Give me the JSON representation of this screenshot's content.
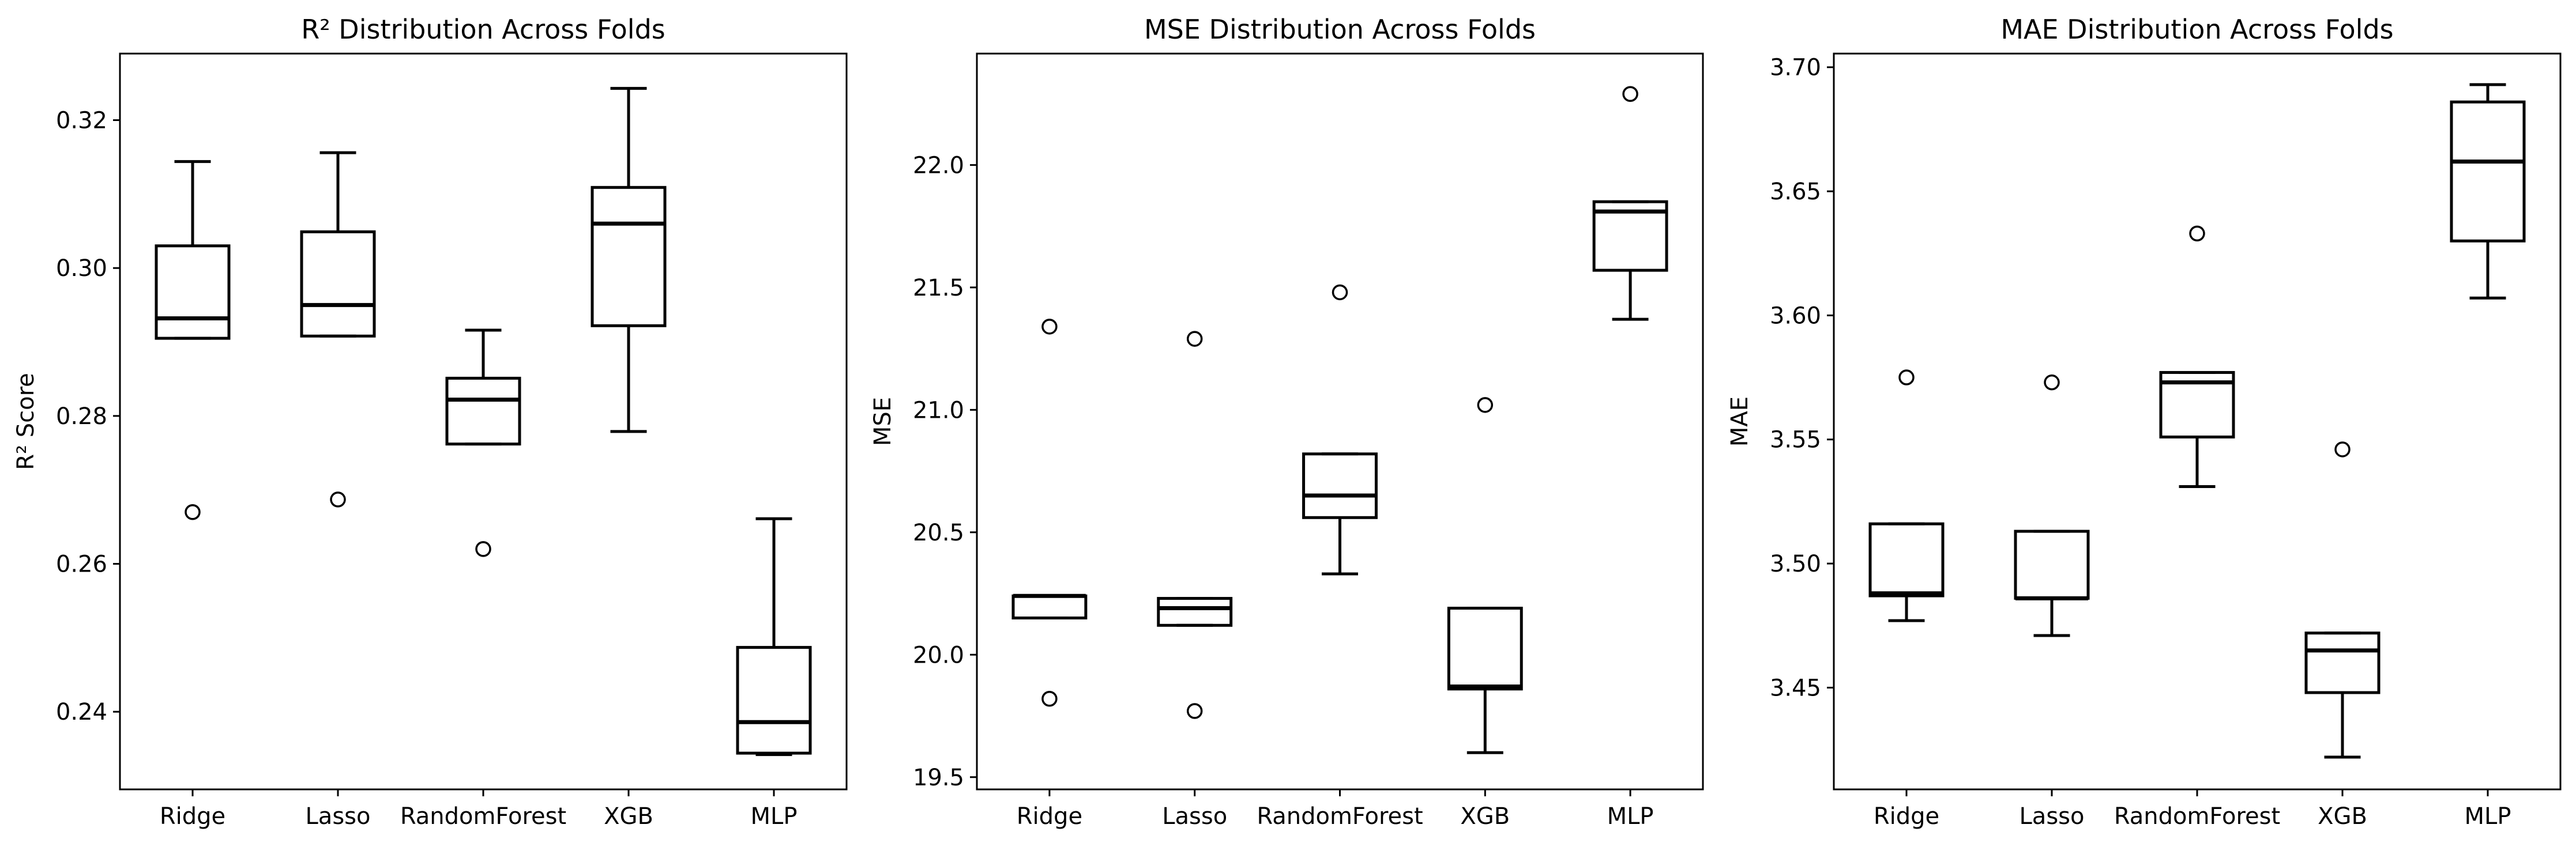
{
  "chart_data": [
    {
      "type": "box",
      "title": "R² Distribution Across Folds",
      "xlabel": "",
      "ylabel": "R² Score",
      "ylim": [
        0.2295,
        0.329
      ],
      "yticks": [
        0.24,
        0.26,
        0.28,
        0.3,
        0.32
      ],
      "ytick_labels": [
        "0.24",
        "0.26",
        "0.28",
        "0.30",
        "0.32"
      ],
      "categories": [
        "Ridge",
        "Lasso",
        "RandomForest",
        "XGB",
        "MLP"
      ],
      "boxes": [
        {
          "name": "Ridge",
          "whislo": 0.2905,
          "q1": 0.2905,
          "med": 0.2932,
          "q3": 0.303,
          "whishi": 0.3144,
          "fliers": [
            0.267
          ]
        },
        {
          "name": "Lasso",
          "whislo": 0.2908,
          "q1": 0.2908,
          "med": 0.295,
          "q3": 0.3049,
          "whishi": 0.3156,
          "fliers": [
            0.2687
          ]
        },
        {
          "name": "RandomForest",
          "whislo": 0.2762,
          "q1": 0.2762,
          "med": 0.2822,
          "q3": 0.2851,
          "whishi": 0.2916,
          "fliers": [
            0.262
          ]
        },
        {
          "name": "XGB",
          "whislo": 0.2779,
          "q1": 0.2922,
          "med": 0.306,
          "q3": 0.3109,
          "whishi": 0.3243,
          "fliers": []
        },
        {
          "name": "MLP",
          "whislo": 0.2342,
          "q1": 0.2344,
          "med": 0.2386,
          "q3": 0.2487,
          "whishi": 0.2661,
          "fliers": []
        }
      ]
    },
    {
      "type": "box",
      "title": "MSE Distribution Across Folds",
      "xlabel": "",
      "ylabel": "MSE",
      "ylim": [
        19.45,
        22.455
      ],
      "yticks": [
        19.5,
        20.0,
        20.5,
        21.0,
        21.5,
        22.0
      ],
      "ytick_labels": [
        "19.5",
        "20.0",
        "20.5",
        "21.0",
        "21.5",
        "22.0"
      ],
      "categories": [
        "Ridge",
        "Lasso",
        "RandomForest",
        "XGB",
        "MLP"
      ],
      "boxes": [
        {
          "name": "Ridge",
          "whislo": 20.15,
          "q1": 20.15,
          "med": 20.24,
          "q3": 20.24,
          "whishi": 20.24,
          "fliers": [
            19.82,
            21.34
          ]
        },
        {
          "name": "Lasso",
          "whislo": 20.12,
          "q1": 20.12,
          "med": 20.19,
          "q3": 20.23,
          "whishi": 20.23,
          "fliers": [
            19.77,
            21.29
          ]
        },
        {
          "name": "RandomForest",
          "whislo": 20.33,
          "q1": 20.56,
          "med": 20.65,
          "q3": 20.82,
          "whishi": 20.82,
          "fliers": [
            21.48
          ]
        },
        {
          "name": "XGB",
          "whislo": 19.6,
          "q1": 19.86,
          "med": 19.87,
          "q3": 20.19,
          "whishi": 20.19,
          "fliers": [
            21.02
          ]
        },
        {
          "name": "MLP",
          "whislo": 21.37,
          "q1": 21.57,
          "med": 21.81,
          "q3": 21.85,
          "whishi": 21.85,
          "fliers": [
            22.29
          ]
        }
      ]
    },
    {
      "type": "box",
      "title": "MAE Distribution Across Folds",
      "xlabel": "",
      "ylabel": "MAE",
      "ylim": [
        3.409,
        3.7055
      ],
      "yticks": [
        3.45,
        3.5,
        3.55,
        3.6,
        3.65,
        3.7
      ],
      "ytick_labels": [
        "3.45",
        "3.50",
        "3.55",
        "3.60",
        "3.65",
        "3.70"
      ],
      "categories": [
        "Ridge",
        "Lasso",
        "RandomForest",
        "XGB",
        "MLP"
      ],
      "boxes": [
        {
          "name": "Ridge",
          "whislo": 3.477,
          "q1": 3.487,
          "med": 3.488,
          "q3": 3.516,
          "whishi": 3.516,
          "fliers": [
            3.575
          ]
        },
        {
          "name": "Lasso",
          "whislo": 3.471,
          "q1": 3.486,
          "med": 3.486,
          "q3": 3.513,
          "whishi": 3.513,
          "fliers": [
            3.573
          ]
        },
        {
          "name": "RandomForest",
          "whislo": 3.531,
          "q1": 3.551,
          "med": 3.573,
          "q3": 3.577,
          "whishi": 3.577,
          "fliers": [
            3.633
          ]
        },
        {
          "name": "XGB",
          "whislo": 3.422,
          "q1": 3.448,
          "med": 3.465,
          "q3": 3.472,
          "whishi": 3.472,
          "fliers": [
            3.546
          ]
        },
        {
          "name": "MLP",
          "whislo": 3.607,
          "q1": 3.63,
          "med": 3.662,
          "q3": 3.686,
          "whishi": 3.693,
          "fliers": []
        }
      ]
    }
  ]
}
